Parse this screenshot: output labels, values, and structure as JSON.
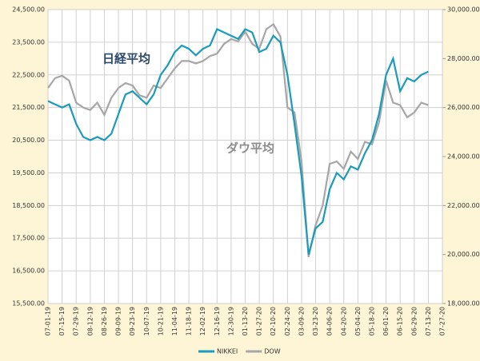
{
  "chart_data": {
    "type": "line",
    "annotations": [
      {
        "text": "日経平均",
        "color": "#2e4a6b"
      },
      {
        "text": "ダウ平均",
        "color": "#8c8c8c"
      }
    ],
    "categories": [
      "07-01-19",
      null,
      "07-15-19",
      null,
      "07-29-19",
      null,
      "08-12-19",
      null,
      "08-26-19",
      null,
      "09-09-19",
      null,
      "09-23-19",
      null,
      "10-07-19",
      null,
      "10-21-19",
      null,
      "11-04-19",
      null,
      "11-18-19",
      null,
      "12-02-19",
      null,
      "12-16-19",
      null,
      "12-30-19",
      null,
      "01-13-20",
      null,
      "01-27-20",
      null,
      "02-10-20",
      null,
      "02-24-20",
      null,
      "03-09-20",
      null,
      "03-23-20",
      null,
      "04-06-20",
      null,
      "04-20-20",
      null,
      "05-04-20",
      null,
      "05-18-20",
      null,
      "06-01-20",
      null,
      "06-15-20",
      null,
      "06-29-20",
      null,
      "07-13-20",
      null,
      "07-27-20"
    ],
    "series": [
      {
        "name": "NIKKEI",
        "color": "#1a9bbc",
        "axis": "y",
        "values": [
          21700,
          21600,
          21500,
          21600,
          21000,
          20600,
          20500,
          20600,
          20500,
          20700,
          21300,
          21900,
          22000,
          21800,
          21600,
          21900,
          22500,
          22800,
          23200,
          23400,
          23300,
          23100,
          23300,
          23400,
          23900,
          23800,
          23700,
          23600,
          23900,
          23800,
          23200,
          23300,
          23700,
          23500,
          22500,
          21000,
          19400,
          17000,
          17800,
          18000,
          19000,
          19500,
          19300,
          19700,
          19600,
          20100,
          20500,
          21300,
          22500,
          23000,
          22000,
          22400,
          22300,
          22500,
          22600,
          null,
          null
        ]
      },
      {
        "name": "DOW",
        "color": "#a6a6a6",
        "axis": "y2",
        "values": [
          26800,
          27200,
          27300,
          27100,
          26200,
          26000,
          25900,
          26200,
          25700,
          26400,
          26800,
          27000,
          26900,
          26500,
          26400,
          26900,
          26800,
          27200,
          27600,
          27900,
          27900,
          27800,
          27900,
          28100,
          28200,
          28600,
          28800,
          28700,
          29100,
          28600,
          28400,
          29200,
          29400,
          28900,
          26000,
          25800,
          23800,
          19900,
          21200,
          22000,
          23700,
          23800,
          23500,
          24200,
          23900,
          24600,
          24500,
          25400,
          27100,
          26200,
          26100,
          25600,
          25800,
          26200,
          26100,
          null,
          null
        ]
      }
    ],
    "ylim": [
      15500,
      24500
    ],
    "yticks": [
      {
        "value": 15500,
        "label": "15,500.00"
      },
      {
        "value": 16500,
        "label": "16,500.00"
      },
      {
        "value": 17500,
        "label": "17,500.00"
      },
      {
        "value": 18500,
        "label": "18,500.00"
      },
      {
        "value": 19500,
        "label": "19,500.00"
      },
      {
        "value": 20500,
        "label": "20,500.00"
      },
      {
        "value": 21500,
        "label": "21,500.00"
      },
      {
        "value": 22500,
        "label": "22,500.00"
      },
      {
        "value": 23500,
        "label": "23,500.00"
      },
      {
        "value": 24500,
        "label": "24,500.00"
      }
    ],
    "y2lim": [
      18000,
      30000
    ],
    "y2ticks": [
      {
        "value": 18000,
        "label": "18,000.00"
      },
      {
        "value": 20000,
        "label": "20,000.00"
      },
      {
        "value": 22000,
        "label": "22,000.00"
      },
      {
        "value": 24000,
        "label": "24,000.00"
      },
      {
        "value": 26000,
        "label": "26,000.00"
      },
      {
        "value": 28000,
        "label": "28,000.00"
      },
      {
        "value": 30000,
        "label": "30,000.00"
      }
    ],
    "grid": true,
    "legend": "bottom"
  }
}
